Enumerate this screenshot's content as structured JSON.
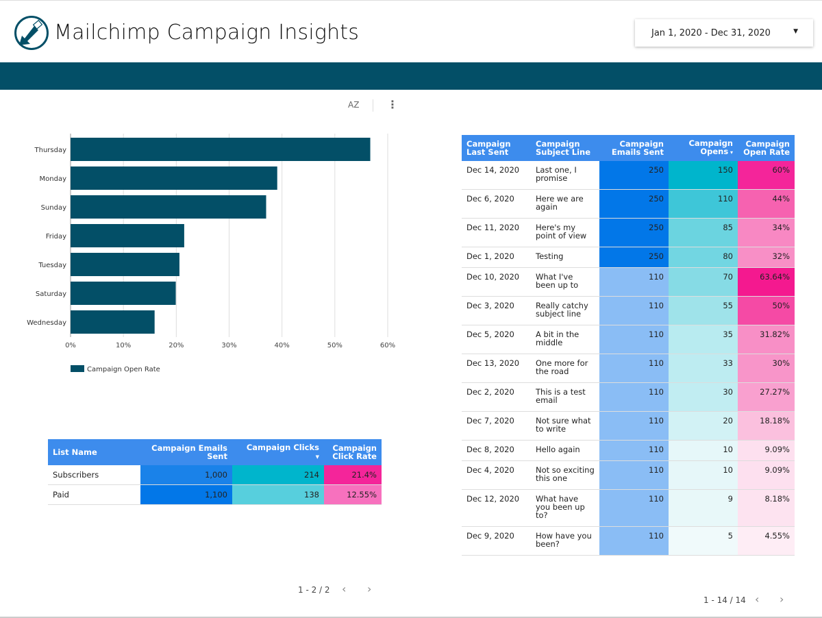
{
  "header": {
    "title": "Mailchimp Campaign Insights",
    "date_range": "Jan 1, 2020 - Dec 31, 2020",
    "brand_color": "#034f67"
  },
  "toolbar": {
    "sort_icon": "AZ",
    "more_icon": "⋮"
  },
  "chart_data": {
    "type": "bar",
    "orientation": "horizontal",
    "categories": [
      "Thursday",
      "Monday",
      "Sunday",
      "Friday",
      "Tuesday",
      "Saturday",
      "Wednesday"
    ],
    "series": [
      {
        "name": "Campaign Open Rate",
        "values": [
          56.7,
          39.1,
          37.0,
          21.5,
          20.6,
          19.9,
          15.9
        ],
        "color": "#034f67"
      }
    ],
    "xlim": [
      0,
      60
    ],
    "xticks": [
      "0%",
      "10%",
      "20%",
      "30%",
      "40%",
      "50%",
      "60%"
    ],
    "grid": true,
    "legend": "bottom-left"
  },
  "list_table": {
    "headers": [
      "List Name",
      "Campaign Emails Sent",
      "Campaign Clicks",
      "Campaign Click Rate"
    ],
    "rows": [
      {
        "cells": [
          "Subscribers",
          "1,000",
          "214",
          "21.4%"
        ],
        "colors": [
          "#1a82e9",
          "#00b5cc",
          "#f4259a"
        ]
      },
      {
        "cells": [
          "Paid",
          "1,100",
          "138",
          "12.55%"
        ],
        "colors": [
          "#0277e8",
          "#57cfdd",
          "#f771be"
        ]
      }
    ],
    "pager": "1 - 2 / 2"
  },
  "campaign_table": {
    "headers": [
      "Campaign Last Sent",
      "Campaign Subject Line",
      "Campaign Emails Sent",
      "Campaign Opens",
      "Campaign Open Rate"
    ],
    "rows": [
      {
        "cells": [
          "Dec 14, 2020",
          "Last one, I promise",
          "250",
          "150",
          "60%"
        ],
        "colors": [
          "#0277e8",
          "#00b5cc",
          "#f4259a"
        ]
      },
      {
        "cells": [
          "Dec 6, 2020",
          "Here we are again",
          "250",
          "110",
          "44%"
        ],
        "colors": [
          "#0277e8",
          "#3ec6d8",
          "#f662b0"
        ]
      },
      {
        "cells": [
          "Dec 11, 2020",
          "Here's my point of view",
          "250",
          "85",
          "34%"
        ],
        "colors": [
          "#0277e8",
          "#6bd4e0",
          "#f888c3"
        ]
      },
      {
        "cells": [
          "Dec 1, 2020",
          "Testing",
          "250",
          "80",
          "32%"
        ],
        "colors": [
          "#0277e8",
          "#72d6e2",
          "#f88fc6"
        ]
      },
      {
        "cells": [
          "Dec 10, 2020",
          "What I've been up to",
          "110",
          "70",
          "63.64%"
        ],
        "colors": [
          "#8abdf5",
          "#86dbe5",
          "#f4198f"
        ]
      },
      {
        "cells": [
          "Dec 3, 2020",
          "Really catchy subject line",
          "110",
          "55",
          "50%"
        ],
        "colors": [
          "#8abdf5",
          "#9fe3ea",
          "#f54aa5"
        ]
      },
      {
        "cells": [
          "Dec 5, 2020",
          "A bit in the middle",
          "110",
          "35",
          "31.82%"
        ],
        "colors": [
          "#8abdf5",
          "#b8ebf0",
          "#f88fc6"
        ]
      },
      {
        "cells": [
          "Dec 13, 2020",
          "One more for the road",
          "110",
          "33",
          "30%"
        ],
        "colors": [
          "#8abdf5",
          "#bdecf1",
          "#f895c9"
        ]
      },
      {
        "cells": [
          "Dec 2, 2020",
          "This is a test email",
          "110",
          "30",
          "27.27%"
        ],
        "colors": [
          "#8abdf5",
          "#c1edf2",
          "#f9a0cf"
        ]
      },
      {
        "cells": [
          "Dec 7, 2020",
          "Not sure what to write",
          "110",
          "20",
          "18.18%"
        ],
        "colors": [
          "#8abdf5",
          "#d2f2f5",
          "#fbc0de"
        ]
      },
      {
        "cells": [
          "Dec 8, 2020",
          "Hello again",
          "110",
          "10",
          "9.09%"
        ],
        "colors": [
          "#8abdf5",
          "#e6f7f9",
          "#fde0ef"
        ]
      },
      {
        "cells": [
          "Dec 4, 2020",
          "Not so exciting this one",
          "110",
          "10",
          "9.09%"
        ],
        "colors": [
          "#8abdf5",
          "#e6f7f9",
          "#fde0ef"
        ]
      },
      {
        "cells": [
          "Dec 12, 2020",
          "What have you been up to?",
          "110",
          "9",
          "8.18%"
        ],
        "colors": [
          "#8abdf5",
          "#e8f8f9",
          "#fde3f0"
        ]
      },
      {
        "cells": [
          "Dec 9, 2020",
          "How have you been?",
          "110",
          "5",
          "4.55%"
        ],
        "colors": [
          "#8abdf5",
          "#f0fafb",
          "#feedf5"
        ]
      }
    ],
    "pager": "1 - 14 / 14"
  },
  "pager_icons": {
    "prev": "‹",
    "next": "›"
  }
}
